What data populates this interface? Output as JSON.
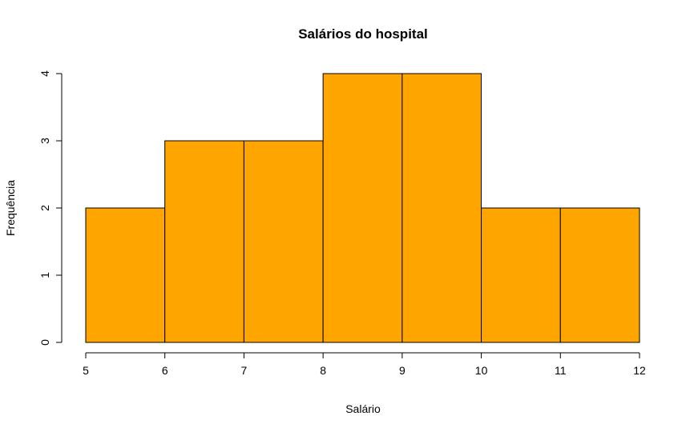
{
  "chart_data": {
    "type": "bar",
    "subtype": "histogram",
    "title": "Salários do hospital",
    "xlabel": "Salário",
    "ylabel": "Frequência",
    "bin_edges": [
      5,
      6,
      7,
      8,
      9,
      10,
      11,
      12
    ],
    "values": [
      2,
      3,
      3,
      4,
      4,
      2,
      2
    ],
    "xlim": [
      5,
      12
    ],
    "ylim": [
      0,
      4
    ],
    "x_ticks": [
      5,
      6,
      7,
      8,
      9,
      10,
      11,
      12
    ],
    "y_ticks": [
      0,
      1,
      2,
      3,
      4
    ],
    "bar_color": "#FFA500",
    "edge_color": "#000000",
    "grid": false,
    "legend": "none"
  }
}
